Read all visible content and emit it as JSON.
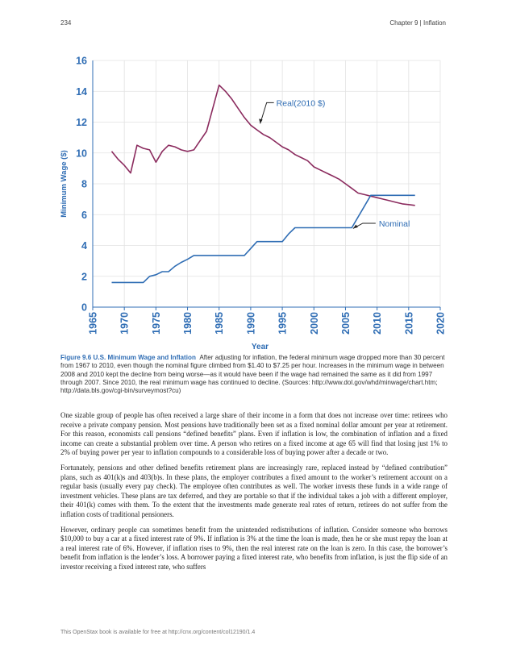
{
  "header": {
    "page_number": "234",
    "chapter": "Chapter 9 | Inflation"
  },
  "chart_data": {
    "type": "line",
    "xlabel": "Year",
    "ylabel": "Minimum Wage ($)",
    "xlim": [
      1965,
      2020
    ],
    "ylim": [
      0,
      16
    ],
    "x_ticks": [
      "1965",
      "1970",
      "1975",
      "1980",
      "1985",
      "1990",
      "1995",
      "2000",
      "2005",
      "2010",
      "2015",
      "2020"
    ],
    "y_ticks": [
      "0",
      "2",
      "4",
      "6",
      "8",
      "10",
      "12",
      "14",
      "16"
    ],
    "grid": true,
    "series": [
      {
        "name": "Real(2010 $)",
        "color": "#8b2b5e",
        "x": [
          1968,
          1969,
          1970,
          1971,
          1972,
          1973,
          1974,
          1975,
          1976,
          1977,
          1978,
          1979,
          1980,
          1981,
          1982,
          1983,
          1984,
          1985,
          1986,
          1987,
          1988,
          1989,
          1990,
          1991,
          1992,
          1993,
          1994,
          1995,
          1996,
          1997,
          1998,
          1999,
          2000,
          2001,
          2002,
          2003,
          2004,
          2005,
          2006,
          2007,
          2008,
          2009,
          2010,
          2011,
          2012,
          2013,
          2014,
          2015,
          2016
        ],
        "values": [
          10.1,
          9.6,
          9.2,
          8.7,
          10.5,
          10.3,
          10.2,
          9.4,
          10.1,
          10.5,
          10.4,
          10.2,
          10.1,
          10.2,
          10.8,
          11.4,
          12.9,
          14.4,
          14.0,
          13.5,
          12.9,
          12.3,
          11.8,
          11.5,
          11.2,
          11.0,
          10.7,
          10.4,
          10.2,
          9.9,
          9.7,
          9.5,
          9.1,
          8.9,
          8.7,
          8.5,
          8.3,
          8.0,
          7.7,
          7.4,
          7.3,
          7.2,
          7.1,
          7.0,
          6.9,
          6.8,
          6.7,
          6.65,
          6.6
        ]
      },
      {
        "name": "Nominal",
        "color": "#2f6db4",
        "x": [
          1968,
          1969,
          1970,
          1971,
          1972,
          1973,
          1974,
          1975,
          1976,
          1977,
          1978,
          1979,
          1980,
          1981,
          1982,
          1983,
          1984,
          1985,
          1986,
          1987,
          1988,
          1989,
          1990,
          1991,
          1992,
          1993,
          1994,
          1995,
          1996,
          1997,
          1998,
          1999,
          2000,
          2001,
          2002,
          2003,
          2004,
          2005,
          2006,
          2007,
          2008,
          2009,
          2010,
          2011,
          2012,
          2013,
          2014,
          2015,
          2016
        ],
        "values": [
          1.6,
          1.6,
          1.6,
          1.6,
          1.6,
          1.6,
          2.0,
          2.1,
          2.3,
          2.3,
          2.65,
          2.9,
          3.1,
          3.35,
          3.35,
          3.35,
          3.35,
          3.35,
          3.35,
          3.35,
          3.35,
          3.35,
          3.8,
          4.25,
          4.25,
          4.25,
          4.25,
          4.25,
          4.75,
          5.15,
          5.15,
          5.15,
          5.15,
          5.15,
          5.15,
          5.15,
          5.15,
          5.15,
          5.15,
          5.85,
          6.55,
          7.25,
          7.25,
          7.25,
          7.25,
          7.25,
          7.25,
          7.25,
          7.25
        ]
      }
    ],
    "annotations": [
      "Real(2010 $)",
      "Nominal"
    ]
  },
  "caption": {
    "label": "Figure 9.6 U.S. Minimum Wage and Inflation",
    "text": "After adjusting for inflation, the federal minimum wage dropped more than 30 percent from 1967 to 2010, even though the nominal figure climbed from $1.40 to $7.25 per hour. Increases in the minimum wage in between 2008 and 2010 kept the decline from being worse—as it would have been if the wage had remained the same as it did from 1997 through 2007. Since 2010, the real minimum wage has continued to decline. (Sources: http://www.dol.gov/whd/minwage/chart.htm; http://data.bls.gov/cgi-bin/surveymost?cu)"
  },
  "paragraphs": [
    "One sizable group of people has often received a large share of their income in a form that does not increase over time: retirees who receive a private company pension. Most pensions have traditionally been set as a fixed nominal dollar amount per year at retirement. For this reason, economists call pensions “defined benefits” plans. Even if inflation is low, the combination of inflation and a fixed income can create a substantial problem over time. A person who retires on a fixed income at age 65 will find that losing just 1% to 2% of buying power per year to inflation compounds to a considerable loss of buying power after a decade or two.",
    "Fortunately, pensions and other defined benefits retirement plans are increasingly rare, replaced instead by “defined contribution” plans, such as 401(k)s and 403(b)s. In these plans, the employer contributes a fixed amount to the worker’s retirement account on a regular basis (usually every pay check). The employee often contributes as well. The worker invests these funds in a wide range of investment vehicles. These plans are tax deferred, and they are portable so that if the individual takes a job with a different employer, their 401(k) comes with them. To the extent that the investments made generate real rates of return, retirees do not suffer from the inflation costs of traditional pensioners.",
    "However, ordinary people can sometimes benefit from the unintended redistributions of inflation. Consider someone who borrows $10,000 to buy a car at a fixed interest rate of 9%. If inflation is 3% at the time the loan is made, then he or she must repay the loan at a real interest rate of 6%. However, if inflation rises to 9%, then the real interest rate on the loan is zero. In this case, the borrower’s benefit from inflation is the lender’s loss. A borrower paying a fixed interest rate, who benefits from inflation, is just the flip side of an investor receiving a fixed interest rate, who suffers"
  ],
  "footer": "This OpenStax book is available for free at http://cnx.org/content/col12190/1.4"
}
